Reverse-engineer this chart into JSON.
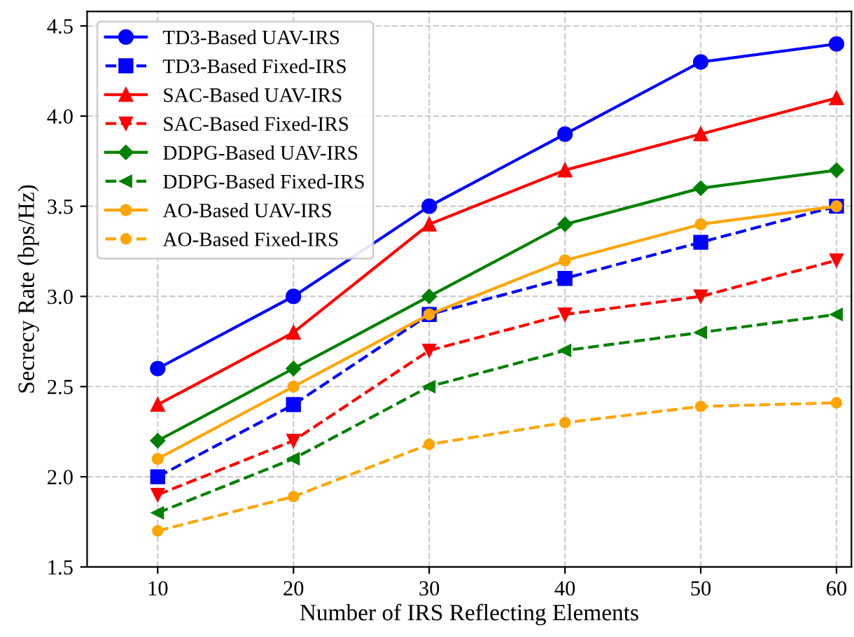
{
  "chart_data": {
    "type": "line",
    "xlabel": "Number of IRS Reflecting Elements",
    "ylabel": "Secrecy Rate (bps/Hz)",
    "x": [
      10,
      20,
      30,
      40,
      50,
      60
    ],
    "xlim": [
      4.8,
      61.1
    ],
    "xticks": [
      10,
      20,
      30,
      40,
      50,
      60
    ],
    "ylim": [
      1.5,
      4.58
    ],
    "yticks": [
      1.5,
      {
        "value": 2,
        "label": "2.0"
      },
      2.5,
      {
        "value": 3,
        "label": "3.0"
      },
      3.5,
      {
        "value": 4,
        "label": "4.0"
      },
      4.5
    ],
    "grid": true,
    "legend": "top left",
    "series": [
      {
        "name": "TD3-Based UAV-IRS",
        "color": "#0000ff",
        "line_style": "solid",
        "marker": "circle",
        "values": [
          2.6,
          3.0,
          3.5,
          3.9,
          4.3,
          4.4
        ]
      },
      {
        "name": "TD3-Based Fixed-IRS",
        "color": "#0000ff",
        "line_style": "dashed",
        "marker": "square",
        "values": [
          2.0,
          2.4,
          2.9,
          3.1,
          3.3,
          3.5
        ]
      },
      {
        "name": "SAC-Based UAV-IRS",
        "color": "#ff0000",
        "line_style": "solid",
        "marker": "triangle",
        "values": [
          2.4,
          2.8,
          3.4,
          3.7,
          3.9,
          4.1
        ]
      },
      {
        "name": "SAC-Based Fixed-IRS",
        "color": "#ff0000",
        "line_style": "dashed",
        "marker": "triangle_down",
        "values": [
          1.9,
          2.2,
          2.7,
          2.9,
          3.0,
          3.2
        ]
      },
      {
        "name": "DDPG-Based UAV-IRS",
        "color": "#008000",
        "line_style": "solid",
        "marker": "diamond",
        "values": [
          2.2,
          2.6,
          3.0,
          3.4,
          3.6,
          3.7
        ]
      },
      {
        "name": "DDPG-Based Fixed-IRS",
        "color": "#008000",
        "line_style": "dashed",
        "marker": "triangle_left",
        "values": [
          1.8,
          2.1,
          2.5,
          2.7,
          2.8,
          2.9
        ]
      },
      {
        "name": "AO-Based UAV-IRS",
        "color": "#ffa500",
        "line_style": "solid",
        "marker": "circle",
        "values": [
          2.1,
          2.5,
          2.9,
          3.2,
          3.4,
          3.5
        ]
      },
      {
        "name": "AO-Based Fixed-IRS",
        "color": "#ffa500",
        "line_style": "dashed",
        "marker": "circle",
        "values": [
          1.7,
          1.89,
          2.18,
          2.3,
          2.39,
          2.41
        ]
      }
    ]
  }
}
